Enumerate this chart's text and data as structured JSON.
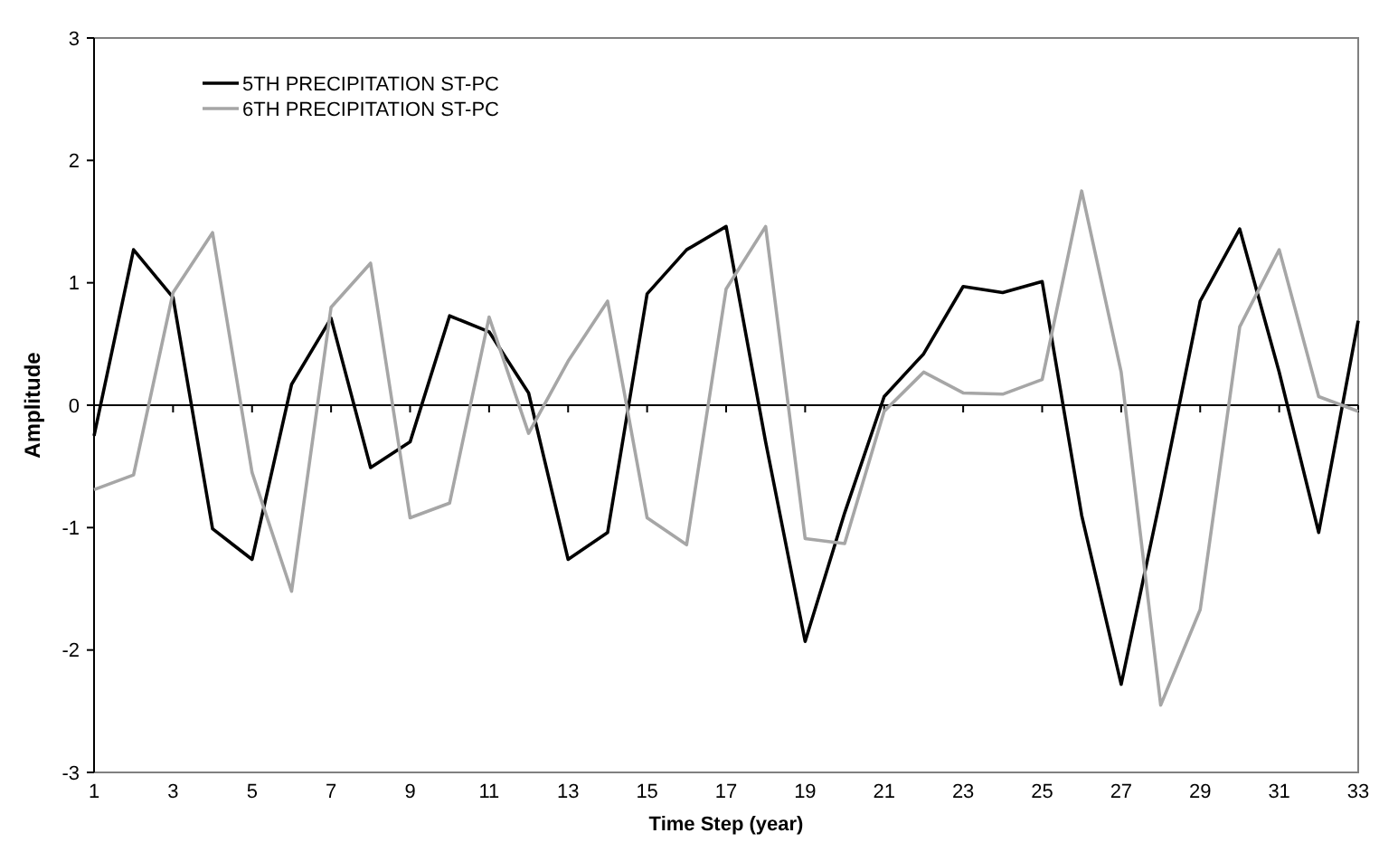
{
  "chart_data": {
    "type": "line",
    "xlabel": "Time Step (year)",
    "ylabel": "Amplitude",
    "x": [
      1,
      2,
      3,
      4,
      5,
      6,
      7,
      8,
      9,
      10,
      11,
      12,
      13,
      14,
      15,
      16,
      17,
      18,
      19,
      20,
      21,
      22,
      23,
      24,
      25,
      26,
      27,
      28,
      29,
      30,
      31,
      32,
      33
    ],
    "series": [
      {
        "name": "5TH PRECIPITATION ST-PC",
        "color": "#000000",
        "values": [
          -0.25,
          1.27,
          0.88,
          -1.01,
          -1.26,
          0.17,
          0.71,
          -0.51,
          -0.3,
          0.73,
          0.6,
          0.1,
          -1.26,
          -1.04,
          0.91,
          1.27,
          1.46,
          -0.3,
          -1.93,
          -0.88,
          0.07,
          0.42,
          0.97,
          0.92,
          1.01,
          -0.9,
          -2.28,
          -0.75,
          0.85,
          1.44,
          0.27,
          -1.04,
          0.69
        ]
      },
      {
        "name": "6TH PRECIPITATION ST-PC",
        "color": "#a6a6a6",
        "values": [
          -0.69,
          -0.57,
          0.92,
          1.41,
          -0.55,
          -1.52,
          0.8,
          1.16,
          -0.92,
          -0.8,
          0.72,
          -0.23,
          0.36,
          0.85,
          -0.92,
          -1.14,
          0.95,
          1.46,
          -1.09,
          -1.13,
          -0.05,
          0.27,
          0.1,
          0.09,
          0.21,
          1.75,
          0.27,
          -2.45,
          -1.67,
          0.64,
          1.27,
          0.07,
          -0.05
        ]
      }
    ],
    "xlim": [
      1,
      33
    ],
    "xticks": [
      1,
      3,
      5,
      7,
      9,
      11,
      13,
      15,
      17,
      19,
      21,
      23,
      25,
      27,
      29,
      31,
      33
    ],
    "ylim": [
      -3,
      3
    ],
    "yticks": [
      -3,
      -2,
      -1,
      0,
      1,
      2,
      3
    ],
    "legend": "top left",
    "marker": "none",
    "line_style": "solid"
  }
}
